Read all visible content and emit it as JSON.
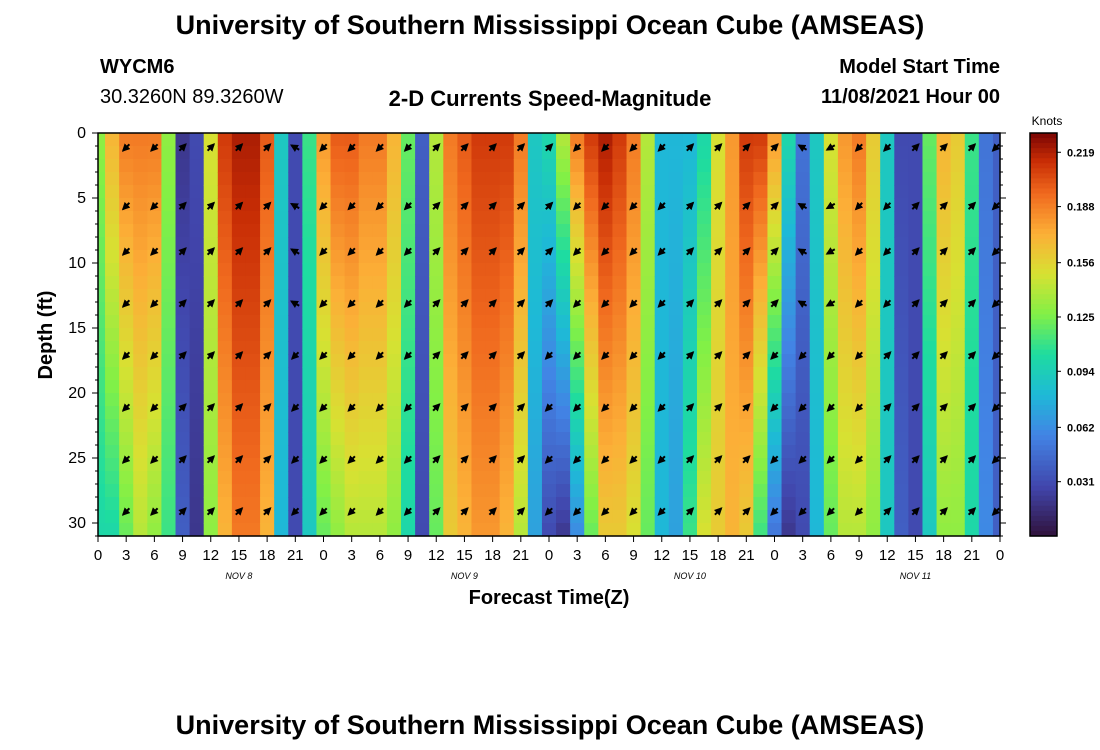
{
  "header": {
    "title": "University of Southern Mississippi Ocean Cube (AMSEAS)",
    "station_id": "WYCM6",
    "coordinates": "30.3260N  89.3260W",
    "plot_title": "2-D Currents Speed-Magnitude",
    "model_label": "Model Start Time",
    "model_start": "11/08/2021 Hour 00"
  },
  "footer": {
    "title": "University of Southern Mississippi Ocean Cube (AMSEAS)"
  },
  "colors": {
    "background": "#ffffff",
    "arrow": "#000000"
  },
  "chart_data": {
    "type": "heatmap",
    "title": "2-D Currents Speed-Magnitude",
    "xlabel": "Forecast Time(Z)",
    "ylabel": "Depth (ft)",
    "x_ticks": [
      "0",
      "3",
      "6",
      "9",
      "12",
      "15",
      "18",
      "21",
      "0",
      "3",
      "6",
      "9",
      "12",
      "15",
      "18",
      "21",
      "0",
      "3",
      "6",
      "9",
      "12",
      "15",
      "18",
      "21",
      "0",
      "3",
      "6",
      "9",
      "12",
      "15",
      "18",
      "21",
      "0"
    ],
    "date_labels": [
      {
        "label": "NOV 8",
        "hour": 15
      },
      {
        "label": "NOV 9",
        "hour": 39
      },
      {
        "label": "NOV 10",
        "hour": 63
      },
      {
        "label": "NOV 11",
        "hour": 87
      }
    ],
    "xlim_hours": [
      0,
      96
    ],
    "ylim_depth_ft": [
      0,
      31
    ],
    "y_ticks": [
      0,
      5,
      10,
      15,
      20,
      25,
      30
    ],
    "colorbar": {
      "unit": "Knots",
      "ticks": [
        "0.219",
        "0.188",
        "0.156",
        "0.125",
        "0.094",
        "0.062",
        "0.031"
      ],
      "range": [
        0,
        0.23
      ]
    },
    "hours": [
      0,
      1.5,
      3,
      4.5,
      6,
      7.5,
      9,
      10.5,
      12,
      13.5,
      15,
      16.5,
      18,
      19.5,
      21,
      22.5,
      24,
      25.5,
      27,
      28.5,
      30,
      31.5,
      33,
      34.5,
      36,
      37.5,
      39,
      40.5,
      42,
      43.5,
      45,
      46.5,
      48,
      49.5,
      51,
      52.5,
      54,
      55.5,
      57,
      58.5,
      60,
      61.5,
      63,
      64.5,
      66,
      67.5,
      69,
      70.5,
      72,
      73.5,
      75,
      76.5,
      78,
      79.5,
      81,
      82.5,
      84,
      85.5,
      87,
      88.5,
      90,
      91.5,
      93,
      94.5,
      96
    ],
    "speed_knots_surface": [
      0.13,
      0.17,
      0.19,
      0.19,
      0.19,
      0.13,
      0.02,
      0.03,
      0.15,
      0.21,
      0.22,
      0.22,
      0.2,
      0.09,
      0.03,
      0.11,
      0.18,
      0.2,
      0.2,
      0.19,
      0.19,
      0.17,
      0.12,
      0.04,
      0.14,
      0.19,
      0.2,
      0.21,
      0.21,
      0.21,
      0.19,
      0.09,
      0.1,
      0.14,
      0.19,
      0.21,
      0.22,
      0.21,
      0.19,
      0.14,
      0.08,
      0.08,
      0.08,
      0.1,
      0.15,
      0.18,
      0.21,
      0.21,
      0.18,
      0.1,
      0.05,
      0.09,
      0.15,
      0.18,
      0.19,
      0.16,
      0.09,
      0.03,
      0.03,
      0.12,
      0.17,
      0.16,
      0.11,
      0.05,
      0.04
    ],
    "speed_knots_bottom": [
      0.1,
      0.1,
      0.12,
      0.14,
      0.13,
      0.11,
      0.04,
      0.02,
      0.13,
      0.17,
      0.19,
      0.19,
      0.17,
      0.08,
      0.03,
      0.09,
      0.12,
      0.13,
      0.14,
      0.14,
      0.14,
      0.13,
      0.1,
      0.03,
      0.12,
      0.16,
      0.17,
      0.18,
      0.18,
      0.17,
      0.14,
      0.07,
      0.03,
      0.02,
      0.06,
      0.12,
      0.16,
      0.16,
      0.15,
      0.12,
      0.08,
      0.07,
      0.11,
      0.15,
      0.16,
      0.17,
      0.16,
      0.11,
      0.05,
      0.02,
      0.03,
      0.08,
      0.12,
      0.14,
      0.14,
      0.13,
      0.09,
      0.04,
      0.03,
      0.09,
      0.13,
      0.13,
      0.1,
      0.06,
      0.04
    ],
    "vector_depths_ft": [
      0.5,
      5,
      8.5,
      12.5,
      16.5,
      20.5,
      24.5,
      28.5
    ],
    "vector_hours": [
      3,
      6,
      9,
      12,
      15,
      18,
      21,
      24,
      27,
      30,
      33,
      36,
      39,
      42,
      45,
      48,
      51,
      54,
      57,
      60,
      63,
      66,
      69,
      72,
      75,
      78,
      81,
      84,
      87,
      90,
      93,
      96
    ],
    "vector_direction_deg_surface": [
      225,
      225,
      45,
      45,
      45,
      45,
      300,
      225,
      225,
      225,
      225,
      45,
      45,
      45,
      45,
      45,
      225,
      225,
      225,
      225,
      45,
      45,
      45,
      45,
      300,
      240,
      225,
      225,
      45,
      45,
      45,
      225
    ],
    "vector_direction_deg_bottom": [
      225,
      225,
      45,
      45,
      45,
      45,
      225,
      225,
      225,
      225,
      225,
      45,
      45,
      45,
      45,
      225,
      225,
      225,
      225,
      225,
      45,
      45,
      45,
      225,
      225,
      225,
      225,
      45,
      45,
      45,
      45,
      225
    ]
  }
}
